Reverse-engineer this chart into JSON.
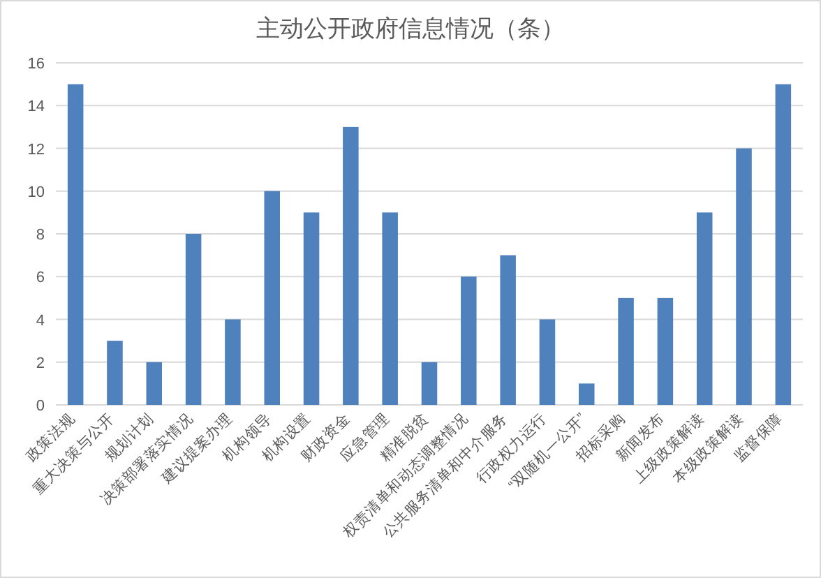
{
  "chart_data": {
    "type": "bar",
    "title": "主动公开政府信息情况（条）",
    "categories": [
      "政策法规",
      "重大决策与公开",
      "规划计划",
      "决策部署落实情况",
      "建议提案办理",
      "机构领导",
      "机构设置",
      "财政资金",
      "应急管理",
      "精准脱贫",
      "权责清单和动态调整情况",
      "公共服务清单和中介服务",
      "行政权力运行",
      "“双随机一公开”",
      "招标采购",
      "新闻发布",
      "上级政策解读",
      "本级政策解读",
      "监督保障"
    ],
    "values": [
      15,
      3,
      2,
      8,
      4,
      10,
      9,
      13,
      9,
      2,
      6,
      7,
      4,
      1,
      5,
      5,
      9,
      12,
      15
    ],
    "color": "#4f81bd",
    "ylim": [
      0,
      16
    ],
    "yticks": [
      0,
      2,
      4,
      6,
      8,
      10,
      12,
      14,
      16
    ],
    "grid": "y"
  }
}
